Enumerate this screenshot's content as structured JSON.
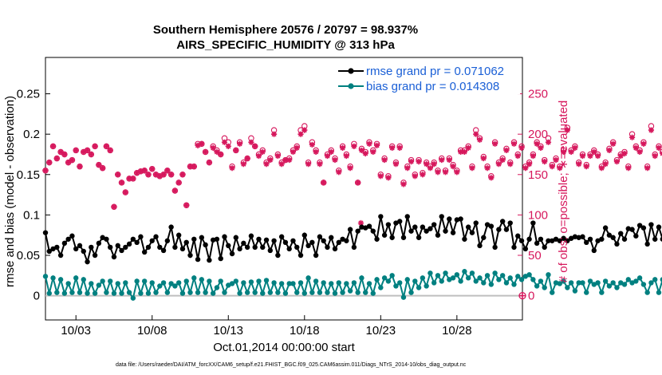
{
  "chart_data": {
    "type": "line",
    "title_line1": "Southern Hemisphere 20576 / 20797 = 98.937%",
    "title_line2": "AIRS_SPECIFIC_HUMIDITY @ 313 hPa",
    "xlabel": "Oct.01,2014 00:00:00 start",
    "ylabel_left": "rmse and bias (model - observation)",
    "ylabel_right": "# of obs: o=possible; ∗=evaluated",
    "xlim": [
      1,
      32.3
    ],
    "ylim_left": [
      -0.03,
      0.295
    ],
    "ylim_right": [
      -30,
      295
    ],
    "x_ticks": [
      3,
      8,
      13,
      18,
      23,
      28
    ],
    "x_tick_labels": [
      "10/03",
      "10/08",
      "10/13",
      "10/18",
      "10/23",
      "10/28"
    ],
    "y_left_ticks": [
      0,
      0.05,
      0.1,
      0.15,
      0.2,
      0.25
    ],
    "y_left_tick_labels": [
      "0",
      "0.05",
      "0.1",
      "0.15",
      "0.2",
      "0.25"
    ],
    "y_right_ticks": [
      0,
      50,
      100,
      150,
      200,
      250
    ],
    "y_right_tick_labels": [
      "0",
      "50",
      "100",
      "150",
      "200",
      "250"
    ],
    "x_start": 1.0,
    "x_step": 0.25,
    "series": [
      {
        "name": "rmse",
        "legend": "rmse grand pr = 0.071062",
        "color": "#000000",
        "values": [
          0.078,
          0.055,
          0.058,
          0.06,
          0.05,
          0.065,
          0.07,
          0.074,
          0.058,
          0.062,
          0.055,
          0.042,
          0.06,
          0.05,
          0.065,
          0.072,
          0.07,
          0.06,
          0.048,
          0.062,
          0.056,
          0.06,
          0.064,
          0.07,
          0.066,
          0.073,
          0.054,
          0.06,
          0.068,
          0.073,
          0.06,
          0.056,
          0.068,
          0.085,
          0.06,
          0.075,
          0.058,
          0.066,
          0.05,
          0.07,
          0.045,
          0.072,
          0.063,
          0.044,
          0.069,
          0.07,
          0.046,
          0.073,
          0.062,
          0.052,
          0.072,
          0.058,
          0.065,
          0.06,
          0.074,
          0.06,
          0.07,
          0.06,
          0.069,
          0.056,
          0.068,
          0.05,
          0.073,
          0.066,
          0.058,
          0.068,
          0.06,
          0.05,
          0.075,
          0.062,
          0.066,
          0.05,
          0.073,
          0.068,
          0.06,
          0.072,
          0.058,
          0.066,
          0.07,
          0.068,
          0.082,
          0.06,
          0.08,
          0.085,
          0.084,
          0.086,
          0.08,
          0.07,
          0.098,
          0.075,
          0.088,
          0.072,
          0.09,
          0.092,
          0.072,
          0.098,
          0.08,
          0.085,
          0.072,
          0.085,
          0.08,
          0.083,
          0.088,
          0.075,
          0.098,
          0.08,
          0.095,
          0.078,
          0.094,
          0.095,
          0.07,
          0.085,
          0.078,
          0.09,
          0.062,
          0.072,
          0.088,
          0.086,
          0.06,
          0.082,
          0.092,
          0.082,
          0.09,
          0.06,
          0.074,
          0.068,
          0.058,
          0.07,
          0.09,
          0.065,
          0.07,
          0.06,
          0.068,
          0.068,
          0.07,
          0.068,
          0.071,
          0.068,
          0.071,
          0.073,
          0.072,
          0.073,
          0.066,
          0.07,
          0.056,
          0.068,
          0.07,
          0.084,
          0.075,
          0.072,
          0.064,
          0.077,
          0.07,
          0.083,
          0.082,
          0.074,
          0.087,
          0.084,
          0.064,
          0.088,
          0.07,
          0.085,
          0.07,
          0.08,
          0.094,
          0.064,
          0.08,
          0.08,
          0.066,
          0.078,
          0.092,
          0.088,
          0.084,
          0.09,
          0.09,
          0.08,
          0.076,
          0.062,
          0.074,
          0.088
        ]
      },
      {
        "name": "bias",
        "legend": "bias grand pr = 0.014308",
        "color": "#008080",
        "values": [
          0.024,
          0.003,
          0.022,
          0.004,
          0.02,
          0.003,
          0.015,
          0.004,
          0.022,
          0.004,
          0.02,
          0.003,
          0.015,
          0.003,
          0.013,
          0.018,
          0.004,
          0.018,
          0.003,
          0.015,
          0.003,
          0.016,
          0.004,
          -0.003,
          0.018,
          0.003,
          0.018,
          0.003,
          0.016,
          0.004,
          0.012,
          0.016,
          0.004,
          0.015,
          0.012,
          0.016,
          0.003,
          0.018,
          0.004,
          0.022,
          0.004,
          0.02,
          0.004,
          0.018,
          0.003,
          0.01,
          0.018,
          0.004,
          0.013,
          0.015,
          0.018,
          0.003,
          0.016,
          0.004,
          0.017,
          0.004,
          0.018,
          0.003,
          0.019,
          0.004,
          0.016,
          0.004,
          0.015,
          0.003,
          0.015,
          0.015,
          0.004,
          0.016,
          0.003,
          0.022,
          0.004,
          0.018,
          0.004,
          0.016,
          0.004,
          0.015,
          0.003,
          0.016,
          0.004,
          0.015,
          0.006,
          0.016,
          0.004,
          0.022,
          0.004,
          0.015,
          0.003,
          0.02,
          0.01,
          0.022,
          0.018,
          0.025,
          0.012,
          0.016,
          -0.002,
          0.02,
          0.004,
          0.018,
          0.01,
          0.022,
          0.012,
          0.028,
          0.016,
          0.025,
          0.018,
          0.028,
          0.02,
          0.022,
          0.026,
          0.018,
          0.03,
          0.022,
          0.028,
          0.018,
          0.022,
          0.016,
          0.025,
          0.014,
          0.028,
          0.02,
          0.025,
          0.016,
          0.022,
          0.014,
          0.024,
          0.02,
          0.024,
          0.026,
          0.02,
          0.012,
          0.018,
          0.01,
          0.026,
          0.004,
          0.016,
          0.015,
          0.018,
          0.01,
          0.016,
          0.006,
          0.016,
          0.016,
          0.004,
          0.018,
          0.014,
          0.016,
          0.004,
          0.018,
          0.012,
          0.016,
          0.01,
          0.016,
          0.014,
          0.02,
          0.016,
          0.018,
          0.022,
          0.014,
          0.004,
          0.016,
          0.02,
          0.004,
          0.02,
          0.012,
          0.025,
          0.005,
          0.022,
          0.004,
          0.02,
          0.012,
          0.025,
          0.004,
          0.018,
          0.016,
          0.03,
          0.024,
          0.022,
          0.03,
          0.004,
          0.026,
          0.016,
          0.02,
          0.018
        ]
      },
      {
        "name": "obs_possible",
        "legend": "",
        "color": "#d6175c",
        "values": [
          155,
          165,
          185,
          170,
          178,
          175,
          165,
          168,
          180,
          160,
          178,
          180,
          175,
          185,
          162,
          158,
          185,
          180,
          110,
          150,
          140,
          128,
          145,
          145,
          152,
          154,
          155,
          150,
          157,
          150,
          148,
          150,
          155,
          150,
          130,
          140,
          150,
          112,
          160,
          160,
          188,
          188,
          178,
          165,
          185,
          180,
          175,
          195,
          190,
          160,
          180,
          190,
          165,
          170,
          195,
          185,
          175,
          180,
          165,
          170,
          205,
          175,
          165,
          168,
          170,
          180,
          185,
          205,
          210,
          165,
          190,
          180,
          165,
          140,
          175,
          180,
          170,
          155,
          185,
          175,
          160,
          188,
          140,
          182,
          178,
          190,
          180,
          188,
          150,
          170,
          148,
          185,
          165,
          185,
          140,
          160,
          168,
          150,
          168,
          152,
          165,
          160,
          165,
          155,
          170,
          155,
          170,
          162,
          155,
          180,
          180,
          185,
          160,
          205,
          195,
          172,
          160,
          148,
          190,
          165,
          170,
          182,
          165,
          190,
          175,
          185,
          160,
          165,
          175,
          190,
          185,
          168,
          195,
          162,
          170,
          160,
          180,
          208,
          180,
          185,
          165,
          175,
          162,
          175,
          180,
          175,
          160,
          165,
          182,
          190,
          168,
          175,
          178,
          160,
          200,
          185,
          180,
          190,
          160,
          210,
          175,
          185,
          178,
          165,
          160,
          170,
          178,
          168
        ],
        "marker": "o"
      },
      {
        "name": "obs_evaluated",
        "legend": "",
        "color": "#d6175c",
        "values": [
          155,
          165,
          185,
          170,
          178,
          175,
          165,
          168,
          180,
          160,
          178,
          180,
          175,
          185,
          162,
          158,
          185,
          180,
          110,
          150,
          140,
          128,
          145,
          145,
          152,
          154,
          155,
          150,
          157,
          150,
          148,
          150,
          155,
          150,
          130,
          140,
          150,
          112,
          160,
          160,
          186,
          188,
          178,
          165,
          183,
          178,
          175,
          190,
          185,
          158,
          180,
          188,
          163,
          170,
          190,
          185,
          173,
          178,
          163,
          168,
          200,
          173,
          163,
          168,
          168,
          178,
          183,
          200,
          205,
          163,
          187,
          178,
          163,
          140,
          173,
          178,
          168,
          153,
          183,
          173,
          158,
          185,
          140,
          180,
          176,
          188,
          178,
          186,
          148,
          168,
          146,
          183,
          163,
          183,
          138,
          158,
          166,
          148,
          166,
          150,
          163,
          158,
          163,
          153,
          168,
          153,
          168,
          160,
          153,
          178,
          178,
          183,
          158,
          200,
          193,
          170,
          158,
          146,
          188,
          163,
          168,
          180,
          163,
          188,
          173,
          183,
          158,
          163,
          173,
          188,
          183,
          166,
          190,
          160,
          168,
          158,
          178,
          205,
          178,
          183,
          163,
          173,
          160,
          173,
          178,
          173,
          158,
          163,
          180,
          188,
          166,
          173,
          176,
          158,
          196,
          183,
          178,
          188,
          158,
          205,
          173,
          183,
          176,
          163,
          158,
          168,
          176,
          166
        ],
        "marker": "*"
      }
    ],
    "outlier_point": {
      "x": 21.7,
      "value": 90
    },
    "zero_point_right": {
      "x": 32.3,
      "value": 0
    }
  },
  "footer": "data file: /Users/raeder/DAI/ATM_forcXX/CAM6_setup/f.e21.FHIST_BGC.f09_025.CAM6assim.011/Diags_NTrS_2014-10/obs_diag_output.nc"
}
